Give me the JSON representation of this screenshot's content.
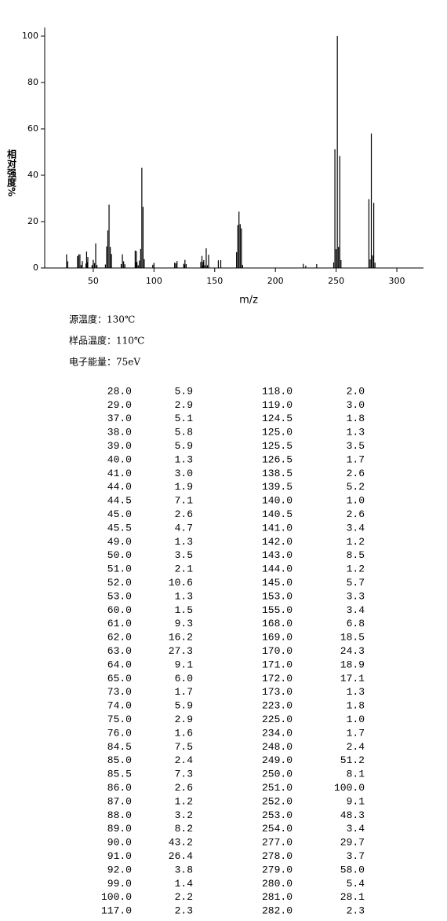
{
  "chart_data": {
    "type": "bar",
    "xlabel": "m/z",
    "ylabel": "相对强度%",
    "color": "#000000",
    "xlim": [
      10,
      320
    ],
    "ylim": [
      0,
      100
    ],
    "xticks": [
      50,
      100,
      150,
      200,
      250,
      300
    ],
    "yticks": [
      0,
      20,
      40,
      60,
      80,
      100
    ],
    "x": [
      28,
      29,
      37,
      38,
      39,
      40,
      41,
      44,
      44.5,
      45,
      45.5,
      49,
      50,
      51,
      52,
      53,
      60,
      61,
      62,
      63,
      64,
      65,
      73,
      74,
      75,
      76,
      84.5,
      85,
      85.5,
      86,
      87,
      88,
      89,
      90,
      91,
      92,
      99,
      100,
      117,
      118,
      119,
      124.5,
      125,
      125.5,
      126.5,
      138.5,
      139.5,
      140,
      140.5,
      141,
      142,
      143,
      144,
      145,
      153,
      155,
      168,
      169,
      170,
      171,
      172,
      173,
      223,
      225,
      234,
      248,
      249,
      250,
      251,
      252,
      253,
      254,
      277,
      278,
      279,
      280,
      281,
      282
    ],
    "x_labels": [
      "28.0",
      "29.0",
      "37.0",
      "38.0",
      "39.0",
      "40.0",
      "41.0",
      "44.0",
      "44.5",
      "45.0",
      "45.5",
      "49.0",
      "50.0",
      "51.0",
      "52.0",
      "53.0",
      "60.0",
      "61.0",
      "62.0",
      "63.0",
      "64.0",
      "65.0",
      "73.0",
      "74.0",
      "75.0",
      "76.0",
      "84.5",
      "85.0",
      "85.5",
      "86.0",
      "87.0",
      "88.0",
      "89.0",
      "90.0",
      "91.0",
      "92.0",
      "99.0",
      "100.0",
      "117.0",
      "118.0",
      "119.0",
      "124.5",
      "125.0",
      "125.5",
      "126.5",
      "138.5",
      "139.5",
      "140.0",
      "140.5",
      "141.0",
      "142.0",
      "143.0",
      "144.0",
      "145.0",
      "153.0",
      "155.0",
      "168.0",
      "169.0",
      "170.0",
      "171.0",
      "172.0",
      "173.0",
      "223.0",
      "225.0",
      "234.0",
      "248.0",
      "249.0",
      "250.0",
      "251.0",
      "252.0",
      "253.0",
      "254.0",
      "277.0",
      "278.0",
      "279.0",
      "280.0",
      "281.0",
      "282.0"
    ],
    "values": [
      5.9,
      2.9,
      5.1,
      5.8,
      5.9,
      1.3,
      3.0,
      1.9,
      7.1,
      2.6,
      4.7,
      1.3,
      3.5,
      2.1,
      10.6,
      1.3,
      1.5,
      9.3,
      16.2,
      27.3,
      9.1,
      6.0,
      1.7,
      5.9,
      2.9,
      1.6,
      7.5,
      2.4,
      7.3,
      2.6,
      1.2,
      3.2,
      8.2,
      43.2,
      26.4,
      3.8,
      1.4,
      2.2,
      2.3,
      2.0,
      3.0,
      1.8,
      1.3,
      3.5,
      1.7,
      2.6,
      5.2,
      1.0,
      2.6,
      3.4,
      1.2,
      8.5,
      1.2,
      5.7,
      3.3,
      3.4,
      6.8,
      18.5,
      24.3,
      18.9,
      17.1,
      1.3,
      1.8,
      1.0,
      1.7,
      2.4,
      51.2,
      8.1,
      100.0,
      9.1,
      48.3,
      3.4,
      29.7,
      3.7,
      58.0,
      5.4,
      28.1,
      2.3
    ],
    "value_labels": [
      "5.9",
      "2.9",
      "5.1",
      "5.8",
      "5.9",
      "1.3",
      "3.0",
      "1.9",
      "7.1",
      "2.6",
      "4.7",
      "1.3",
      "3.5",
      "2.1",
      "10.6",
      "1.3",
      "1.5",
      "9.3",
      "16.2",
      "27.3",
      "9.1",
      "6.0",
      "1.7",
      "5.9",
      "2.9",
      "1.6",
      "7.5",
      "2.4",
      "7.3",
      "2.6",
      "1.2",
      "3.2",
      "8.2",
      "43.2",
      "26.4",
      "3.8",
      "1.4",
      "2.2",
      "2.3",
      "2.0",
      "3.0",
      "1.8",
      "1.3",
      "3.5",
      "1.7",
      "2.6",
      "5.2",
      "1.0",
      "2.6",
      "3.4",
      "1.2",
      "8.5",
      "1.2",
      "5.7",
      "3.3",
      "3.4",
      "6.8",
      "18.5",
      "24.3",
      "18.9",
      "17.1",
      "1.3",
      "1.8",
      "1.0",
      "1.7",
      "2.4",
      "51.2",
      "8.1",
      "100.0",
      "9.1",
      "48.3",
      "3.4",
      "29.7",
      "3.7",
      "58.0",
      "5.4",
      "28.1",
      "2.3"
    ]
  },
  "conditions": [
    "源温度：130℃",
    "样品温度：110℃",
    "电子能量：75eV"
  ]
}
